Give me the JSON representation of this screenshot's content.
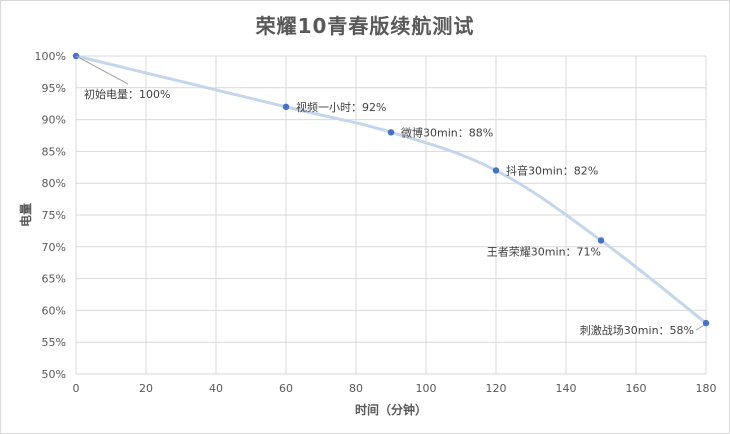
{
  "chart_data": {
    "type": "line",
    "title": "荣耀10青春版续航测试",
    "xlabel": "时间（分钟）",
    "ylabel": "电量",
    "xlim": [
      0,
      180
    ],
    "ylim": [
      50,
      100
    ],
    "x_ticks": [
      "0",
      "20",
      "40",
      "60",
      "80",
      "100",
      "120",
      "140",
      "160",
      "180"
    ],
    "y_ticks": [
      "50%",
      "55%",
      "60%",
      "65%",
      "70%",
      "75%",
      "80%",
      "85%",
      "90%",
      "95%",
      "100%"
    ],
    "grid": true,
    "series": [
      {
        "points": [
          {
            "x": 0,
            "y": 100,
            "label": "初始电量：100%"
          },
          {
            "x": 60,
            "y": 92,
            "label": "视频一小时：92%"
          },
          {
            "x": 90,
            "y": 88,
            "label": "微博30min：88%"
          },
          {
            "x": 120,
            "y": 82,
            "label": "抖音30min：82%"
          },
          {
            "x": 150,
            "y": 71,
            "label": "王者荣耀30min：71%"
          },
          {
            "x": 180,
            "y": 58,
            "label": "刺激战场30min：58%"
          }
        ]
      }
    ],
    "colors": {
      "line": "#c5d6ec",
      "marker": "#4472c4",
      "grid": "#d9d9d9",
      "text": "#595959"
    }
  }
}
